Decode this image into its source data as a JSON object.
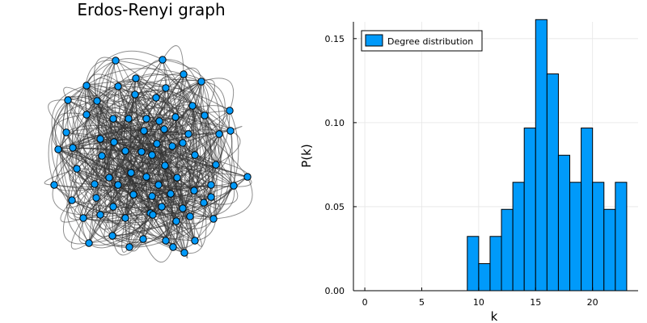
{
  "chart_data": [
    {
      "type": "network",
      "title": "Erdos-Renyi graph",
      "node_color": "#009AFA",
      "edge_color": "#333333"
    },
    {
      "type": "bar",
      "title": "",
      "xlabel": "k",
      "ylabel": "P(k)",
      "xlim": [
        -1,
        24
      ],
      "ylim": [
        0,
        0.16
      ],
      "xticks": [
        "0",
        "5",
        "10",
        "15",
        "20"
      ],
      "yticks": [
        "0.00",
        "0.05",
        "0.10",
        "0.15"
      ],
      "grid": true,
      "legend_position": "top-left",
      "series": [
        {
          "name": "Degree distribution",
          "color": "#009AFA",
          "bins": [
            {
              "k": 9,
              "value": 0.0323
            },
            {
              "k": 10,
              "value": 0.0161
            },
            {
              "k": 11,
              "value": 0.0323
            },
            {
              "k": 12,
              "value": 0.0484
            },
            {
              "k": 13,
              "value": 0.0645
            },
            {
              "k": 14,
              "value": 0.0968
            },
            {
              "k": 15,
              "value": 0.1613
            },
            {
              "k": 16,
              "value": 0.129
            },
            {
              "k": 17,
              "value": 0.0806
            },
            {
              "k": 18,
              "value": 0.0645
            },
            {
              "k": 19,
              "value": 0.0968
            },
            {
              "k": 20,
              "value": 0.0645
            },
            {
              "k": 21,
              "value": 0.0484
            },
            {
              "k": 22,
              "value": 0.0645
            }
          ]
        }
      ]
    }
  ]
}
